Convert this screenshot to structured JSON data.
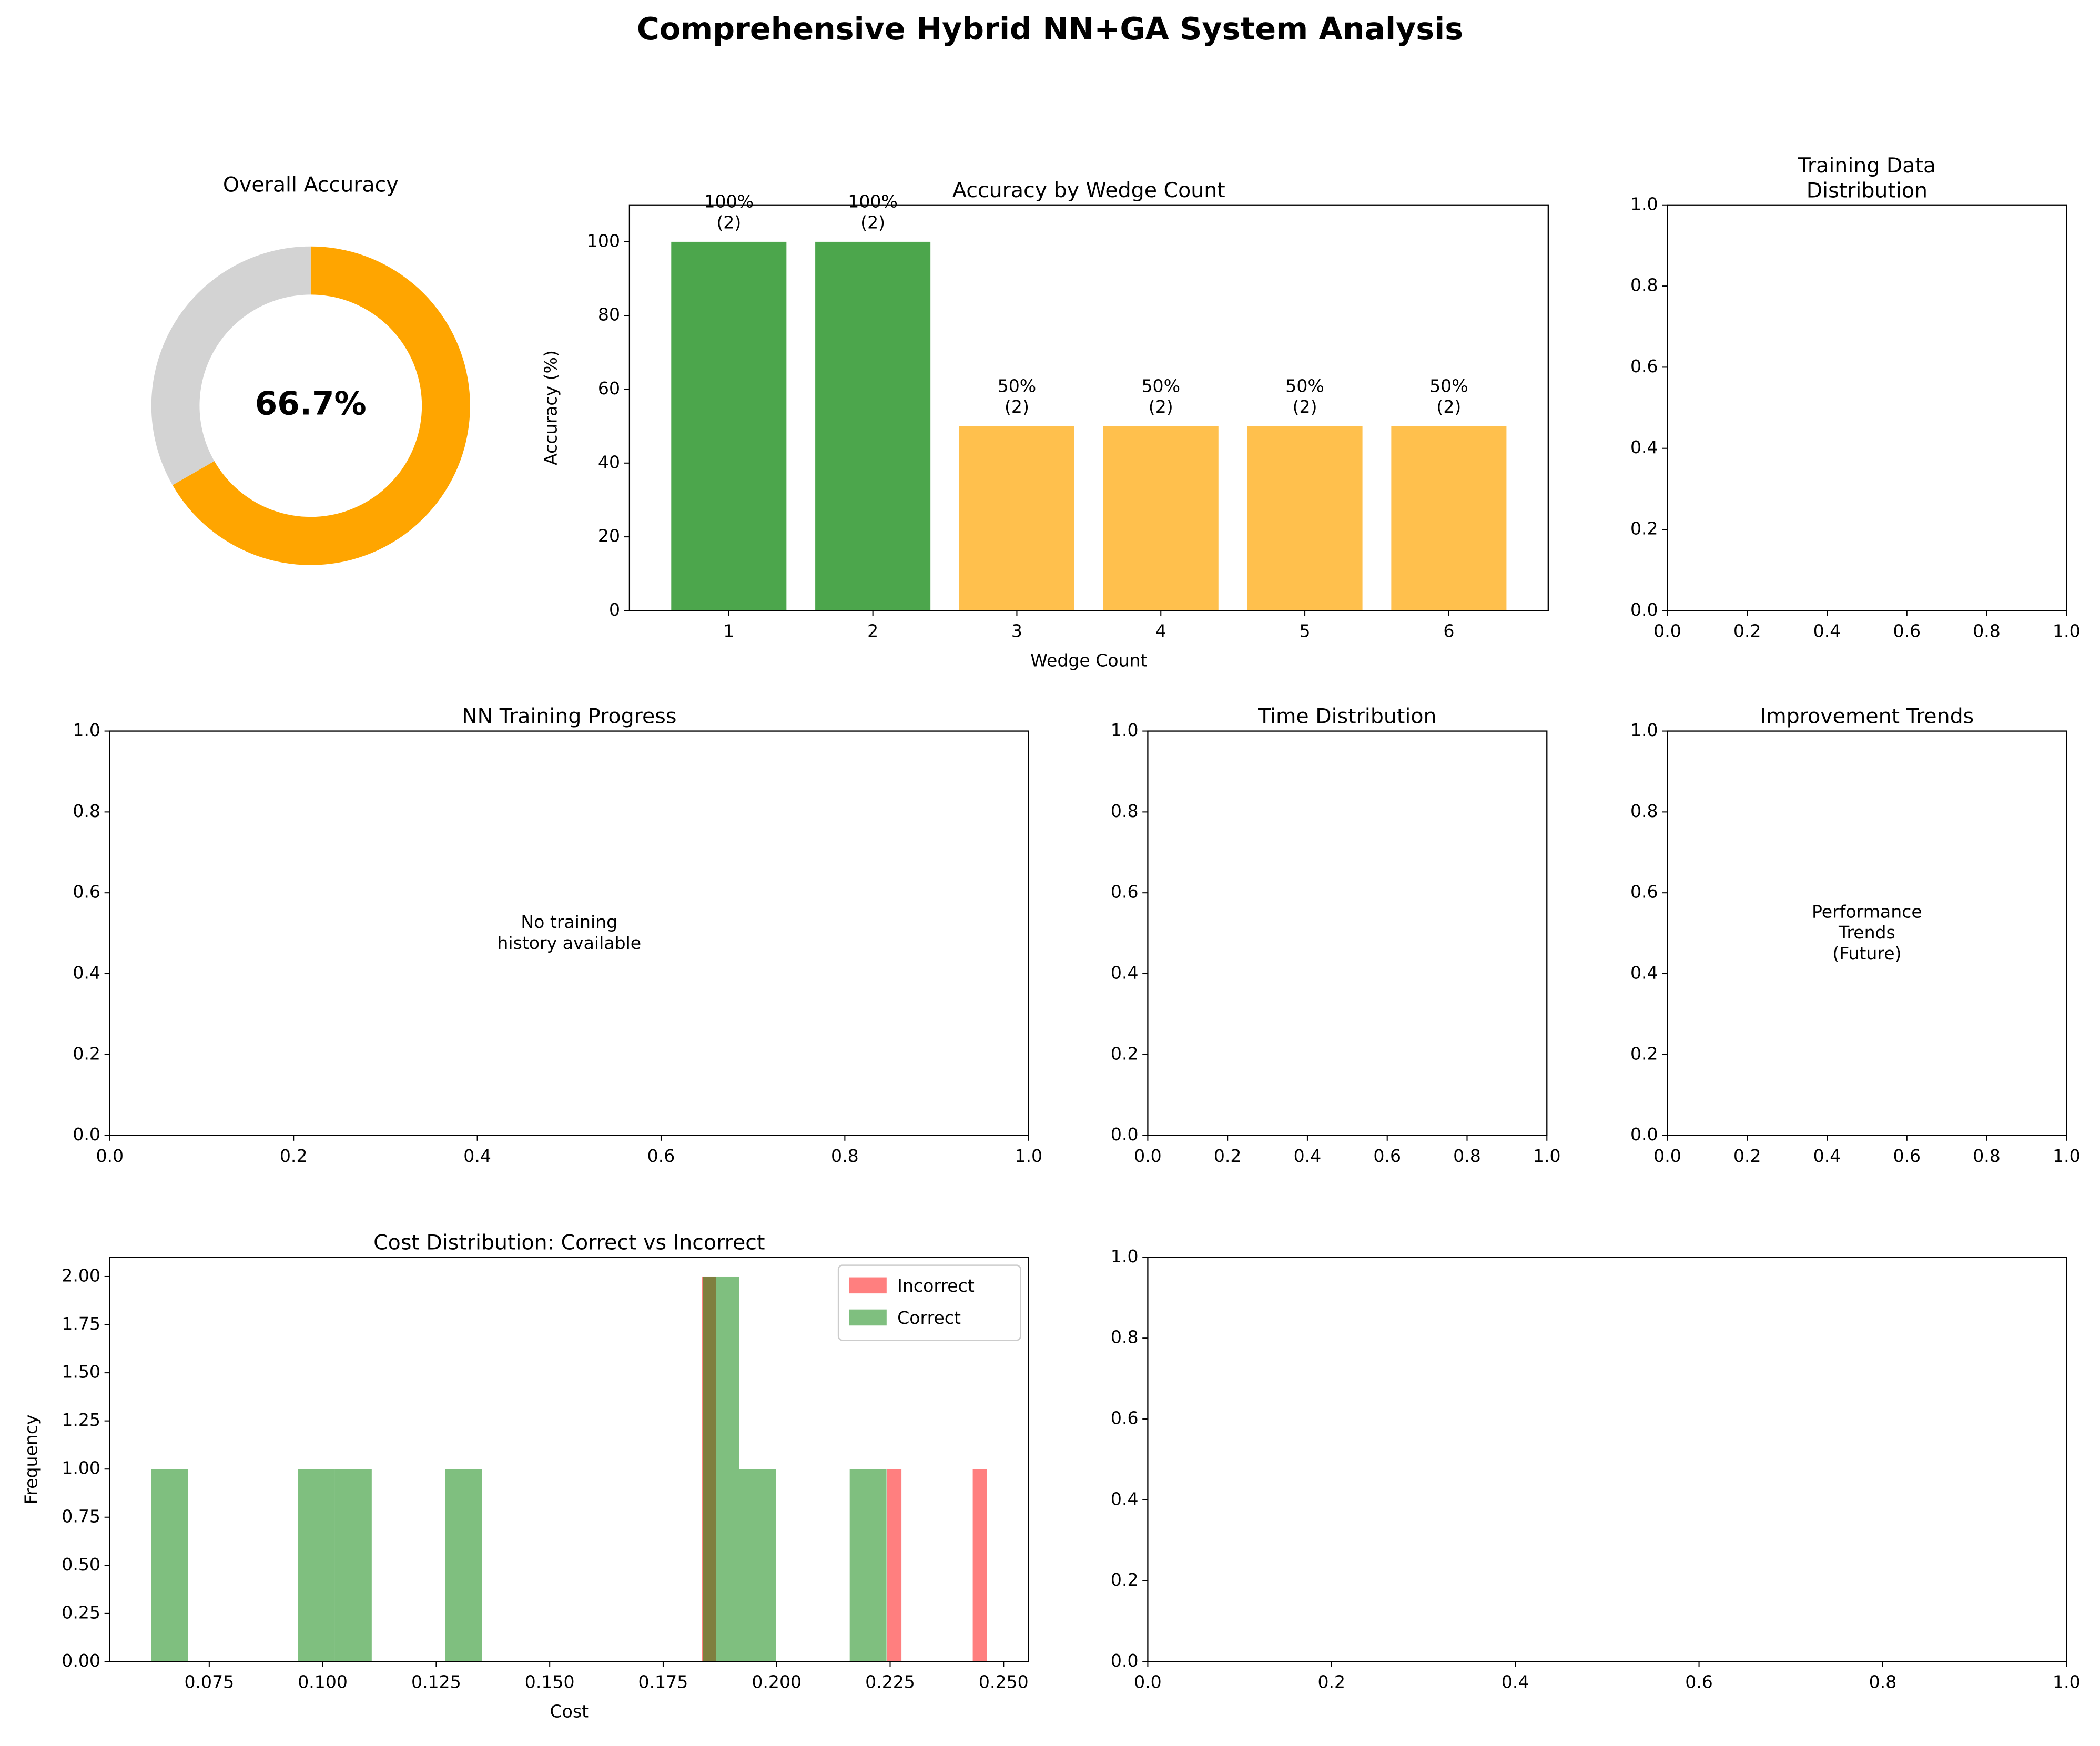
{
  "title": "Comprehensive Hybrid NN+GA System Analysis",
  "chart_data": [
    {
      "type": "pie",
      "title": "Overall Accuracy",
      "values": [
        66.7,
        33.3
      ],
      "colors": [
        "#ffa500",
        "#d3d3d3"
      ],
      "center_label": "66.7%"
    },
    {
      "type": "bar",
      "title": "Accuracy by Wedge Count",
      "xlabel": "Wedge Count",
      "ylabel": "Accuracy (%)",
      "categories": [
        "1",
        "2",
        "3",
        "4",
        "5",
        "6"
      ],
      "values": [
        100,
        100,
        50,
        50,
        50,
        50
      ],
      "value_labels": [
        "100%\n(2)",
        "100%\n(2)",
        "50%\n(2)",
        "50%\n(2)",
        "50%\n(2)",
        "50%\n(2)"
      ],
      "colors": [
        "#4ca64c",
        "#4ca64c",
        "#ffc04d",
        "#ffc04d",
        "#ffc04d",
        "#ffc04d"
      ],
      "ylim": [
        0,
        110
      ],
      "yticks": [
        0,
        20,
        40,
        60,
        80,
        100
      ],
      "grid": false
    },
    {
      "type": "blank",
      "title": "Training Data\nDistribution",
      "xlim": [
        0,
        1
      ],
      "ylim": [
        0,
        1
      ],
      "xticks": [
        {
          "value": 0,
          "label": "0.0"
        },
        0.2,
        0.4,
        0.6,
        0.8,
        {
          "value": 1,
          "label": "1.0"
        }
      ],
      "yticks": [
        {
          "value": 0,
          "label": "0.0"
        },
        0.2,
        0.4,
        0.6,
        0.8,
        {
          "value": 1,
          "label": "1.0"
        }
      ]
    },
    {
      "type": "blank",
      "title": "NN Training Progress",
      "annotation": "No training\nhistory available",
      "xlim": [
        0,
        1
      ],
      "ylim": [
        0,
        1
      ],
      "xticks": [
        {
          "value": 0,
          "label": "0.0"
        },
        0.2,
        0.4,
        0.6,
        0.8,
        {
          "value": 1,
          "label": "1.0"
        }
      ],
      "yticks": [
        {
          "value": 0,
          "label": "0.0"
        },
        0.2,
        0.4,
        0.6,
        0.8,
        {
          "value": 1,
          "label": "1.0"
        }
      ]
    },
    {
      "type": "blank",
      "title": "Time Distribution",
      "xlim": [
        0,
        1
      ],
      "ylim": [
        0,
        1
      ],
      "xticks": [
        {
          "value": 0,
          "label": "0.0"
        },
        0.2,
        0.4,
        0.6,
        0.8,
        {
          "value": 1,
          "label": "1.0"
        }
      ],
      "yticks": [
        {
          "value": 0,
          "label": "0.0"
        },
        0.2,
        0.4,
        0.6,
        0.8,
        {
          "value": 1,
          "label": "1.0"
        }
      ]
    },
    {
      "type": "blank",
      "title": "Improvement Trends",
      "annotation": "Performance\nTrends\n(Future)",
      "xlim": [
        0,
        1
      ],
      "ylim": [
        0,
        1
      ],
      "xticks": [
        {
          "value": 0,
          "label": "0.0"
        },
        0.2,
        0.4,
        0.6,
        0.8,
        {
          "value": 1,
          "label": "1.0"
        }
      ],
      "yticks": [
        {
          "value": 0,
          "label": "0.0"
        },
        0.2,
        0.4,
        0.6,
        0.8,
        {
          "value": 1,
          "label": "1.0"
        }
      ]
    },
    {
      "type": "histogram",
      "title": "Cost Distribution: Correct vs Incorrect",
      "xlabel": "Cost",
      "ylabel": "Frequency",
      "legend": "upper right",
      "series": [
        {
          "name": "Incorrect",
          "color": "#ff0000",
          "alpha": 0.5,
          "bins": [
            0.1835,
            0.1866,
            0.1898,
            0.1929,
            0.1961,
            0.1992,
            0.2023,
            0.2055,
            0.2086,
            0.2118,
            0.2149,
            0.218,
            0.2212,
            0.2243,
            0.2275,
            0.2306,
            0.2337,
            0.2369,
            0.24,
            0.2432,
            0.2463
          ],
          "values": [
            2,
            0,
            0,
            0,
            0,
            0,
            0,
            0,
            0,
            0,
            0,
            0,
            0,
            1,
            0,
            0,
            0,
            0,
            0,
            1
          ]
        },
        {
          "name": "Correct",
          "color": "#008000",
          "alpha": 0.5,
          "bins": [
            0.0622,
            0.0703,
            0.0784,
            0.0865,
            0.0946,
            0.1027,
            0.1108,
            0.1189,
            0.127,
            0.1351,
            0.1432,
            0.1513,
            0.1594,
            0.1675,
            0.1756,
            0.1837,
            0.1918,
            0.1999,
            0.208,
            0.2161,
            0.2242
          ],
          "values": [
            1,
            0,
            0,
            0,
            1,
            1,
            0,
            0,
            1,
            0,
            0,
            0,
            0,
            0,
            0,
            2,
            1,
            0,
            0,
            1
          ]
        }
      ],
      "xlim": [
        0.0531,
        0.2555
      ],
      "xticks": [
        0.075,
        {
          "value": 0.1,
          "label": "0.100"
        },
        0.125,
        {
          "value": 0.15,
          "label": "0.150"
        },
        0.175,
        {
          "value": 0.2,
          "label": "0.200"
        },
        0.225,
        {
          "value": 0.25,
          "label": "0.250"
        }
      ],
      "ylim": [
        0,
        2.1
      ],
      "yticks": [
        {
          "value": 0,
          "label": "0.00"
        },
        0.25,
        {
          "value": 0.5,
          "label": "0.50"
        },
        0.75,
        {
          "value": 1,
          "label": "1.00"
        },
        1.25,
        {
          "value": 1.5,
          "label": "1.50"
        },
        1.75,
        {
          "value": 2,
          "label": "2.00"
        }
      ]
    },
    {
      "type": "blank",
      "xlim": [
        0,
        1
      ],
      "ylim": [
        0,
        1
      ],
      "xticks": [
        {
          "value": 0,
          "label": "0.0"
        },
        0.2,
        0.4,
        0.6,
        0.8,
        {
          "value": 1,
          "label": "1.0"
        }
      ],
      "yticks": [
        {
          "value": 0,
          "label": "0.0"
        },
        0.2,
        0.4,
        0.6,
        0.8,
        {
          "value": 1,
          "label": "1.0"
        }
      ]
    }
  ]
}
